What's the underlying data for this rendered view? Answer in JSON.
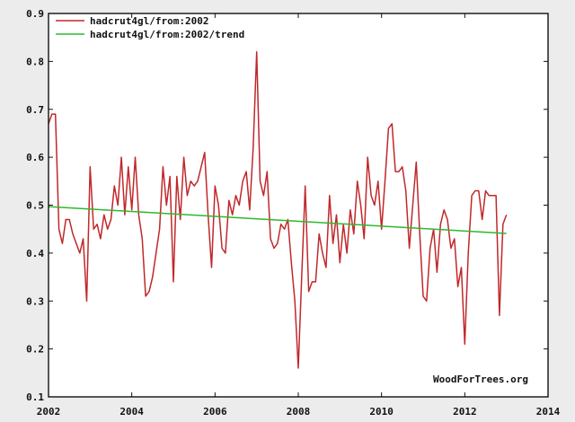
{
  "chart_data": {
    "type": "line",
    "title": "",
    "xlabel": "",
    "ylabel": "",
    "xlim": [
      2002,
      2014
    ],
    "ylim": [
      0.1,
      0.9
    ],
    "xticks": [
      2002,
      2004,
      2006,
      2008,
      2010,
      2012,
      2014
    ],
    "yticks": [
      0.1,
      0.2,
      0.3,
      0.4,
      0.5,
      0.6,
      0.7,
      0.8,
      0.9
    ],
    "xtick_labels": [
      "2002",
      "2004",
      "2006",
      "2008",
      "2010",
      "2012",
      "2014"
    ],
    "ytick_labels": [
      "0.1",
      "0.2",
      "0.3",
      "0.4",
      "0.5",
      "0.6",
      "0.7",
      "0.8",
      "0.9"
    ],
    "legend_position": "top-left",
    "credit": "WoodForTrees.org",
    "series": [
      {
        "name": "hadcrut4gl/from:2002",
        "color": "#c0282a",
        "x": [
          2002.0,
          2002.083,
          2002.167,
          2002.25,
          2002.333,
          2002.417,
          2002.5,
          2002.583,
          2002.667,
          2002.75,
          2002.833,
          2002.917,
          2003.0,
          2003.083,
          2003.167,
          2003.25,
          2003.333,
          2003.417,
          2003.5,
          2003.583,
          2003.667,
          2003.75,
          2003.833,
          2003.917,
          2004.0,
          2004.083,
          2004.167,
          2004.25,
          2004.333,
          2004.417,
          2004.5,
          2004.583,
          2004.667,
          2004.75,
          2004.833,
          2004.917,
          2005.0,
          2005.083,
          2005.167,
          2005.25,
          2005.333,
          2005.417,
          2005.5,
          2005.583,
          2005.667,
          2005.75,
          2005.833,
          2005.917,
          2006.0,
          2006.083,
          2006.167,
          2006.25,
          2006.333,
          2006.417,
          2006.5,
          2006.583,
          2006.667,
          2006.75,
          2006.833,
          2006.917,
          2007.0,
          2007.083,
          2007.167,
          2007.25,
          2007.333,
          2007.417,
          2007.5,
          2007.583,
          2007.667,
          2007.75,
          2007.833,
          2007.917,
          2008.0,
          2008.083,
          2008.167,
          2008.25,
          2008.333,
          2008.417,
          2008.5,
          2008.583,
          2008.667,
          2008.75,
          2008.833,
          2008.917,
          2009.0,
          2009.083,
          2009.167,
          2009.25,
          2009.333,
          2009.417,
          2009.5,
          2009.583,
          2009.667,
          2009.75,
          2009.833,
          2009.917,
          2010.0,
          2010.083,
          2010.167,
          2010.25,
          2010.333,
          2010.417,
          2010.5,
          2010.583,
          2010.667,
          2010.75,
          2010.833,
          2010.917,
          2011.0,
          2011.083,
          2011.167,
          2011.25,
          2011.333,
          2011.417,
          2011.5,
          2011.583,
          2011.667,
          2011.75,
          2011.833,
          2011.917,
          2012.0,
          2012.083,
          2012.167,
          2012.25,
          2012.333,
          2012.417,
          2012.5,
          2012.583,
          2012.667,
          2012.75,
          2012.833,
          2012.917,
          2013.0
        ],
        "y": [
          0.67,
          0.69,
          0.69,
          0.45,
          0.42,
          0.47,
          0.47,
          0.44,
          0.42,
          0.4,
          0.43,
          0.3,
          0.58,
          0.45,
          0.46,
          0.43,
          0.48,
          0.45,
          0.47,
          0.54,
          0.5,
          0.6,
          0.48,
          0.58,
          0.49,
          0.6,
          0.48,
          0.43,
          0.31,
          0.32,
          0.35,
          0.4,
          0.45,
          0.58,
          0.5,
          0.56,
          0.34,
          0.56,
          0.47,
          0.6,
          0.52,
          0.55,
          0.54,
          0.55,
          0.58,
          0.61,
          0.48,
          0.37,
          0.54,
          0.5,
          0.41,
          0.4,
          0.51,
          0.48,
          0.52,
          0.5,
          0.55,
          0.57,
          0.49,
          0.62,
          0.82,
          0.55,
          0.52,
          0.57,
          0.43,
          0.41,
          0.42,
          0.46,
          0.45,
          0.47,
          0.38,
          0.3,
          0.16,
          0.35,
          0.54,
          0.32,
          0.34,
          0.34,
          0.44,
          0.4,
          0.37,
          0.52,
          0.42,
          0.48,
          0.38,
          0.46,
          0.4,
          0.49,
          0.44,
          0.55,
          0.5,
          0.43,
          0.6,
          0.52,
          0.5,
          0.55,
          0.45,
          0.55,
          0.66,
          0.67,
          0.57,
          0.57,
          0.58,
          0.53,
          0.41,
          0.5,
          0.59,
          0.44,
          0.31,
          0.3,
          0.41,
          0.45,
          0.36,
          0.46,
          0.49,
          0.47,
          0.41,
          0.43,
          0.33,
          0.37,
          0.21,
          0.4,
          0.52,
          0.53,
          0.53,
          0.47,
          0.53,
          0.52,
          0.52,
          0.52,
          0.27,
          0.46,
          0.48
        ]
      },
      {
        "name": "hadcrut4gl/from:2002/trend",
        "color": "#2eb82e",
        "x": [
          2002.0,
          2013.0
        ],
        "y": [
          0.497,
          0.441
        ]
      }
    ]
  }
}
